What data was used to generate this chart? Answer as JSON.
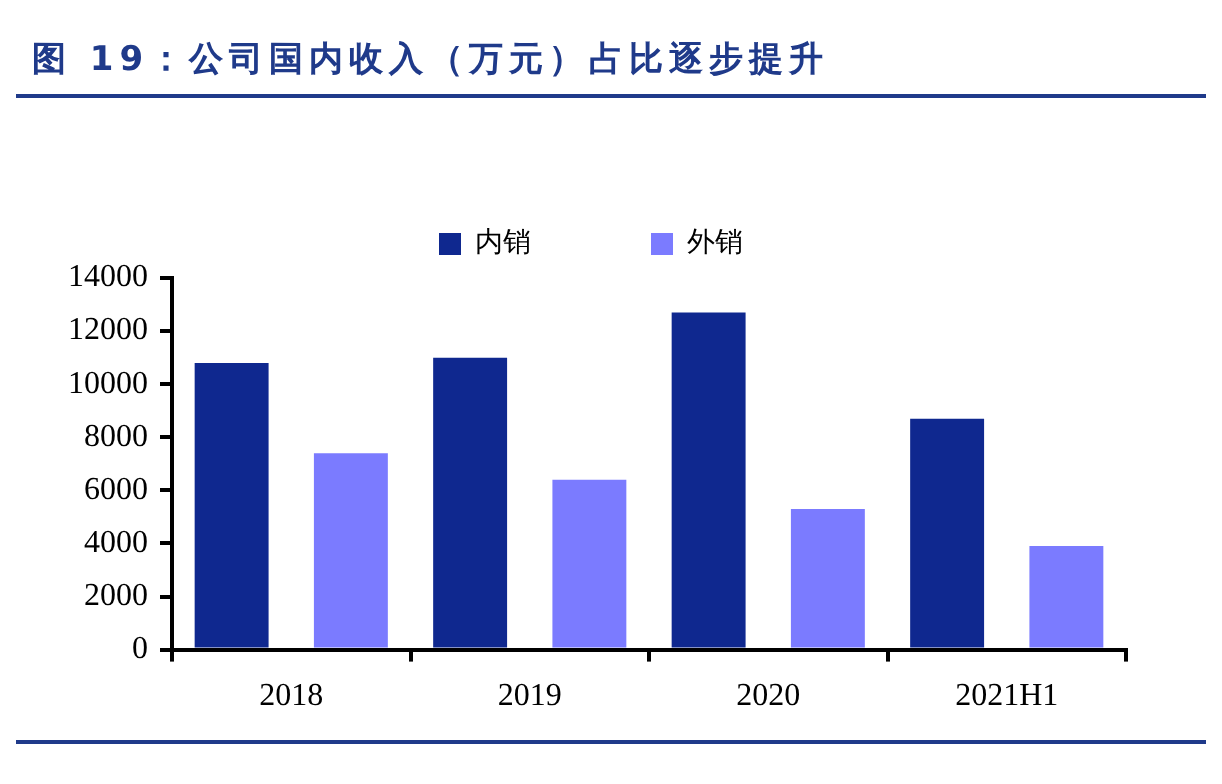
{
  "chart_data": {
    "type": "bar",
    "title": "图 19：公司国内收入（万元）占比逐步提升",
    "categories": [
      "2018",
      "2019",
      "2020",
      "2021H1"
    ],
    "series": [
      {
        "name": "内销",
        "color": "#0f288f",
        "values": [
          10800,
          11000,
          12700,
          8700
        ]
      },
      {
        "name": "外销",
        "color": "#7b7bff",
        "values": [
          7400,
          6400,
          5300,
          3900
        ]
      }
    ],
    "ylim": [
      0,
      14000
    ],
    "yticks": [
      0,
      2000,
      4000,
      6000,
      8000,
      10000,
      12000,
      14000
    ],
    "grid": false,
    "legend": "top"
  }
}
